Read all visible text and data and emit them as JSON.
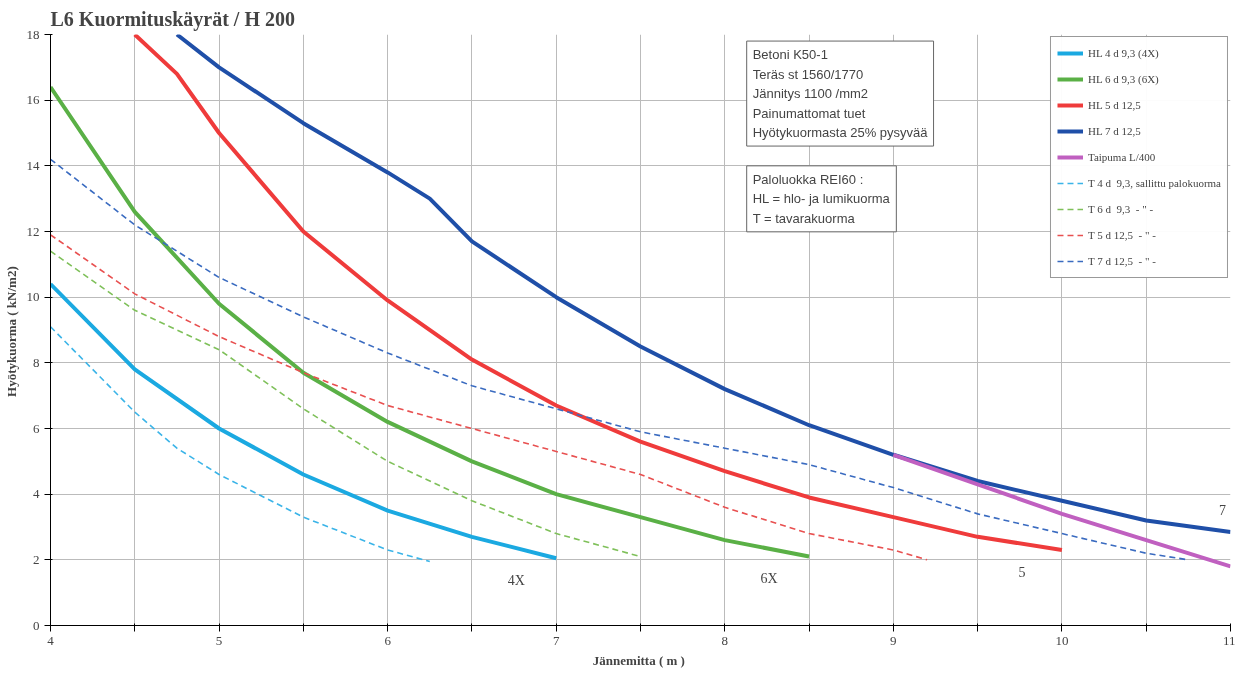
{
  "chart_data": {
    "type": "line",
    "title": "L6  Kuormituskäyrät / H 200",
    "xlabel": "Jännemitta  ( m )",
    "ylabel": "Hyötykuorma  ( kN/m2)",
    "xlim": [
      4,
      11
    ],
    "ylim": [
      0,
      18
    ],
    "xticks": [
      4,
      {
        "value": 4.5,
        "label": null
      },
      5,
      {
        "value": 5.5,
        "label": null
      },
      6,
      {
        "value": 6.5,
        "label": null
      },
      7,
      {
        "value": 7.5,
        "label": null
      },
      8,
      {
        "value": 8.5,
        "label": null
      },
      9,
      {
        "value": 9.5,
        "label": null
      },
      10,
      {
        "value": 10.5,
        "label": null
      },
      11
    ],
    "yticks": [
      0,
      2,
      4,
      6,
      8,
      10,
      12,
      14,
      16,
      18
    ],
    "grid": true,
    "legend": "top right",
    "marker": "none",
    "series": [
      {
        "name": "HL 4 d 9,3 (4X)",
        "color": "#1ba9e1",
        "line_style": "solid",
        "x": [
          4,
          4.5,
          5,
          5.5,
          6,
          6.5,
          7
        ],
        "values": [
          10.4,
          7.8,
          6.0,
          4.6,
          3.5,
          2.7,
          2.05
        ]
      },
      {
        "name": "HL 6 d 9,3 (6X)",
        "color": "#5ab046",
        "line_style": "solid",
        "x": [
          4,
          4.5,
          5,
          5.5,
          6,
          6.5,
          7,
          7.5,
          8,
          8.5
        ],
        "values": [
          16.4,
          12.6,
          9.8,
          7.7,
          6.2,
          5.0,
          4.0,
          3.3,
          2.6,
          2.1
        ]
      },
      {
        "name": "HL 5 d 12,5",
        "color": "#ef3b3b",
        "line_style": "solid",
        "x": [
          4.5,
          4.75,
          5,
          5.5,
          6,
          6.5,
          7,
          7.5,
          8,
          8.5,
          9,
          9.5,
          10
        ],
        "values": [
          18,
          16.8,
          15.0,
          12.0,
          9.9,
          8.1,
          6.7,
          5.6,
          4.7,
          3.9,
          3.3,
          2.7,
          2.3
        ]
      },
      {
        "name": "HL 7 d 12,5",
        "color": "#1f4fa8",
        "line_style": "solid",
        "x": [
          4.75,
          5,
          5.5,
          6,
          6.25,
          6.5,
          7,
          7.5,
          8,
          8.5,
          9,
          9.5,
          10,
          10.5,
          11
        ],
        "values": [
          18,
          17.0,
          15.3,
          13.8,
          13.0,
          11.7,
          10.0,
          8.5,
          7.2,
          6.1,
          5.2,
          4.4,
          3.8,
          3.2,
          2.85
        ]
      },
      {
        "name": "Taipuma L/400",
        "color": "#c060c0",
        "line_style": "solid",
        "x": [
          9,
          9.5,
          10,
          10.5,
          11
        ],
        "values": [
          5.2,
          4.3,
          3.4,
          2.6,
          1.8
        ]
      },
      {
        "name": "T 4 d  9,3, sallittu palokuorma",
        "color": "#3bb4e8",
        "line_style": "dashed",
        "x": [
          4,
          4.5,
          4.75,
          5,
          5.5,
          6,
          6.25
        ],
        "values": [
          9.1,
          6.5,
          5.4,
          4.6,
          3.3,
          2.3,
          1.95
        ]
      },
      {
        "name": "T 6 d  9,3  - \" -",
        "color": "#7fc05a",
        "line_style": "dashed",
        "x": [
          4,
          4.5,
          5,
          5.5,
          6,
          6.5,
          7,
          7.5
        ],
        "values": [
          11.4,
          9.6,
          8.4,
          6.6,
          5.0,
          3.8,
          2.8,
          2.1
        ]
      },
      {
        "name": "T 5 d 12,5  - \" -",
        "color": "#e85050",
        "line_style": "dashed",
        "x": [
          4,
          4.5,
          5,
          5.5,
          6,
          6.5,
          7,
          7.5,
          8,
          8.5,
          9,
          9.2
        ],
        "values": [
          11.9,
          10.1,
          8.8,
          7.7,
          6.7,
          6.0,
          5.3,
          4.6,
          3.6,
          2.8,
          2.3,
          2.0
        ]
      },
      {
        "name": "T 7 d 12,5  - \" -",
        "color": "#3a6bc0",
        "line_style": "dashed",
        "x": [
          4,
          4.5,
          5,
          5.5,
          6,
          6.5,
          7,
          7.5,
          8,
          8.5,
          9,
          9.5,
          10,
          10.5,
          10.75
        ],
        "values": [
          14.2,
          12.2,
          10.6,
          9.4,
          8.3,
          7.3,
          6.6,
          5.9,
          5.4,
          4.9,
          4.2,
          3.4,
          2.8,
          2.2,
          2.0
        ]
      }
    ],
    "annotations": [
      "Betoni K50-1\nTeräs st 1560/1770\nJännitys 1100 /mm2\nPainumattomat tuet\nHyötykuormasta 25% pysyvää",
      "Paloluokka REI60 :\nHL = hlo- ja lumikuorma\nT    = tavarakuorma",
      "4X",
      "6X",
      "5",
      "7"
    ]
  }
}
